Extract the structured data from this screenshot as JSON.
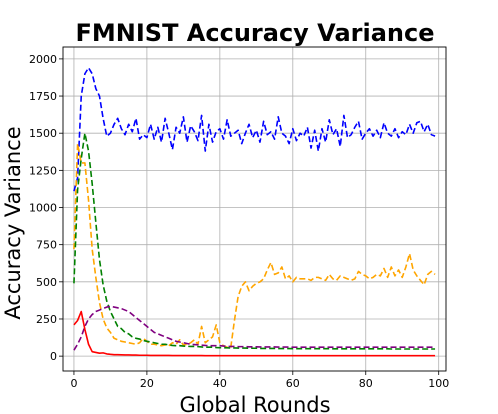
{
  "chart_data": {
    "type": "line",
    "title": "FMNIST Accuracy Variance",
    "xlabel": "Global Rounds",
    "ylabel": "Accuracy Variance",
    "xlim": [
      -3,
      102
    ],
    "ylim": [
      -100,
      2080
    ],
    "xticks": [
      0,
      20,
      40,
      60,
      80,
      100
    ],
    "yticks": [
      0,
      250,
      500,
      750,
      1000,
      1250,
      1500,
      1750,
      2000
    ],
    "grid": true,
    "legend": "none",
    "series": [
      {
        "color": "#0000ff",
        "dash": "dashed",
        "x": [
          0,
          1,
          2,
          3,
          4,
          5,
          6,
          7,
          8,
          9,
          10,
          11,
          12,
          13,
          14,
          15,
          16,
          17,
          18,
          19,
          20,
          21,
          22,
          23,
          24,
          25,
          26,
          27,
          28,
          29,
          30,
          31,
          32,
          33,
          34,
          35,
          36,
          37,
          38,
          39,
          40,
          41,
          42,
          43,
          44,
          45,
          46,
          47,
          48,
          49,
          50,
          51,
          52,
          53,
          54,
          55,
          56,
          57,
          58,
          59,
          60,
          61,
          62,
          63,
          64,
          65,
          66,
          67,
          68,
          69,
          70,
          71,
          72,
          73,
          74,
          75,
          76,
          77,
          78,
          79,
          80,
          81,
          82,
          83,
          84,
          85,
          86,
          87,
          88,
          89,
          90,
          91,
          92,
          93,
          94,
          95,
          96,
          97,
          98,
          99
        ],
        "values": [
          1110,
          1200,
          1750,
          1900,
          1940,
          1900,
          1800,
          1750,
          1600,
          1480,
          1500,
          1560,
          1600,
          1530,
          1490,
          1560,
          1510,
          1600,
          1460,
          1490,
          1470,
          1560,
          1460,
          1540,
          1440,
          1600,
          1500,
          1390,
          1540,
          1500,
          1610,
          1440,
          1550,
          1510,
          1450,
          1620,
          1380,
          1560,
          1440,
          1510,
          1530,
          1460,
          1590,
          1480,
          1500,
          1520,
          1430,
          1500,
          1560,
          1470,
          1520,
          1440,
          1580,
          1490,
          1510,
          1460,
          1610,
          1500,
          1480,
          1430,
          1530,
          1450,
          1500,
          1480,
          1540,
          1400,
          1520,
          1380,
          1530,
          1440,
          1590,
          1490,
          1530,
          1410,
          1620,
          1470,
          1490,
          1540,
          1580,
          1460,
          1500,
          1530,
          1480,
          1520,
          1470,
          1570,
          1500,
          1480,
          1530,
          1470,
          1510,
          1490,
          1560,
          1500,
          1570,
          1580,
          1510,
          1560,
          1490,
          1480
        ]
      },
      {
        "color": "#ffa500",
        "dash": "dashed",
        "x": [
          0,
          1,
          2,
          3,
          4,
          5,
          6,
          7,
          8,
          9,
          10,
          11,
          12,
          13,
          14,
          15,
          16,
          17,
          18,
          19,
          20,
          21,
          22,
          23,
          24,
          25,
          26,
          27,
          28,
          29,
          30,
          31,
          32,
          33,
          34,
          35,
          36,
          37,
          38,
          39,
          40,
          41,
          42,
          43,
          44,
          45,
          46,
          47,
          48,
          49,
          50,
          51,
          52,
          53,
          54,
          55,
          56,
          57,
          58,
          59,
          60,
          61,
          62,
          63,
          64,
          65,
          66,
          67,
          68,
          69,
          70,
          71,
          72,
          73,
          74,
          75,
          76,
          77,
          78,
          79,
          80,
          81,
          82,
          83,
          84,
          85,
          86,
          87,
          88,
          89,
          90,
          91,
          92,
          93,
          94,
          95,
          96,
          97,
          98,
          99
        ],
        "values": [
          720,
          1430,
          1300,
          1300,
          1050,
          720,
          530,
          360,
          250,
          190,
          160,
          120,
          110,
          100,
          95,
          90,
          85,
          80,
          90,
          120,
          100,
          80,
          80,
          75,
          70,
          75,
          70,
          90,
          80,
          110,
          75,
          80,
          90,
          110,
          80,
          200,
          90,
          110,
          130,
          210,
          90,
          70,
          60,
          60,
          240,
          400,
          470,
          500,
          440,
          470,
          490,
          500,
          520,
          580,
          630,
          550,
          560,
          600,
          520,
          540,
          500,
          530,
          520,
          520,
          520,
          510,
          530,
          530,
          520,
          510,
          550,
          520,
          510,
          540,
          530,
          520,
          510,
          520,
          570,
          550,
          540,
          520,
          530,
          550,
          540,
          590,
          530,
          600,
          540,
          580,
          530,
          600,
          690,
          580,
          540,
          510,
          480,
          550,
          570,
          550
        ]
      },
      {
        "color": "#008000",
        "dash": "dashed",
        "x": [
          0,
          1,
          2,
          3,
          4,
          5,
          6,
          7,
          8,
          9,
          10,
          11,
          12,
          13,
          14,
          15,
          16,
          17,
          18,
          19,
          20,
          21,
          22,
          23,
          24,
          25,
          26,
          27,
          28,
          29,
          30,
          31,
          32,
          33,
          34,
          35,
          36,
          37,
          38,
          39,
          40,
          41,
          42,
          43,
          44,
          45,
          46,
          47,
          48,
          49,
          50,
          51,
          52,
          53,
          54,
          55,
          56,
          57,
          58,
          59,
          60,
          61,
          62,
          63,
          64,
          65,
          66,
          67,
          68,
          69,
          70,
          71,
          72,
          73,
          74,
          75,
          76,
          77,
          78,
          79,
          80,
          81,
          82,
          83,
          84,
          85,
          86,
          87,
          88,
          89,
          90,
          91,
          92,
          93,
          94,
          95,
          96,
          97,
          98,
          99
        ],
        "values": [
          490,
          1120,
          1330,
          1500,
          1380,
          1160,
          900,
          650,
          480,
          370,
          300,
          250,
          200,
          185,
          160,
          150,
          130,
          120,
          115,
          105,
          100,
          95,
          90,
          85,
          80,
          80,
          75,
          72,
          70,
          70,
          68,
          66,
          65,
          65,
          64,
          62,
          60,
          60,
          60,
          58,
          57,
          56,
          56,
          55,
          55,
          54,
          54,
          54,
          53,
          53,
          53,
          52,
          52,
          52,
          52,
          52,
          51,
          51,
          51,
          51,
          50,
          50,
          50,
          50,
          50,
          50,
          50,
          50,
          50,
          50,
          50,
          49,
          49,
          49,
          49,
          49,
          49,
          49,
          49,
          49,
          49,
          49,
          49,
          49,
          49,
          49,
          49,
          48,
          48,
          48,
          48,
          48,
          48,
          48,
          48,
          48,
          48,
          48,
          48,
          48
        ]
      },
      {
        "color": "#800080",
        "dash": "dashed",
        "x": [
          0,
          1,
          2,
          3,
          4,
          5,
          6,
          7,
          8,
          9,
          10,
          11,
          12,
          13,
          14,
          15,
          16,
          17,
          18,
          19,
          20,
          21,
          22,
          23,
          24,
          25,
          26,
          27,
          28,
          29,
          30,
          31,
          32,
          33,
          34,
          35,
          36,
          37,
          38,
          39,
          40,
          41,
          42,
          43,
          44,
          45,
          46,
          47,
          48,
          49,
          50,
          51,
          52,
          53,
          54,
          55,
          56,
          57,
          58,
          59,
          60,
          61,
          62,
          63,
          64,
          65,
          66,
          67,
          68,
          69,
          70,
          71,
          72,
          73,
          74,
          75,
          76,
          77,
          78,
          79,
          80,
          81,
          82,
          83,
          84,
          85,
          86,
          87,
          88,
          89,
          90,
          91,
          92,
          93,
          94,
          95,
          96,
          97,
          98,
          99
        ],
        "values": [
          40,
          80,
          130,
          200,
          250,
          280,
          300,
          310,
          320,
          330,
          335,
          330,
          325,
          320,
          310,
          300,
          280,
          260,
          240,
          220,
          200,
          180,
          160,
          150,
          140,
          130,
          120,
          110,
          100,
          95,
          90,
          85,
          80,
          78,
          76,
          74,
          72,
          70,
          70,
          70,
          70,
          68,
          66,
          65,
          65,
          64,
          64,
          64,
          63,
          63,
          63,
          62,
          62,
          62,
          62,
          62,
          61,
          61,
          61,
          61,
          60,
          60,
          60,
          60,
          60,
          60,
          60,
          60,
          60,
          60,
          60,
          60,
          60,
          60,
          60,
          60,
          60,
          60,
          60,
          60,
          60,
          60,
          60,
          60,
          60,
          60,
          60,
          60,
          60,
          60,
          60,
          60,
          60,
          60,
          60,
          60,
          60,
          60,
          60,
          60
        ]
      },
      {
        "color": "#ff0000",
        "dash": "solid",
        "x": [
          0,
          1,
          2,
          3,
          4,
          5,
          6,
          7,
          8,
          9,
          10,
          11,
          12,
          13,
          14,
          15,
          16,
          17,
          18,
          19,
          20,
          21,
          22,
          23,
          24,
          25,
          26,
          27,
          28,
          29,
          30,
          31,
          32,
          33,
          34,
          35,
          36,
          37,
          38,
          39,
          40,
          41,
          42,
          43,
          44,
          45,
          46,
          47,
          48,
          49,
          50,
          51,
          52,
          53,
          54,
          55,
          56,
          57,
          58,
          59,
          60,
          61,
          62,
          63,
          64,
          65,
          66,
          67,
          68,
          69,
          70,
          71,
          72,
          73,
          74,
          75,
          76,
          77,
          78,
          79,
          80,
          81,
          82,
          83,
          84,
          85,
          86,
          87,
          88,
          89,
          90,
          91,
          92,
          93,
          94,
          95,
          96,
          97,
          98,
          99
        ],
        "values": [
          210,
          240,
          300,
          180,
          80,
          30,
          25,
          20,
          22,
          15,
          12,
          10,
          10,
          9,
          8,
          8,
          7,
          7,
          6,
          6,
          6,
          5,
          5,
          5,
          5,
          5,
          5,
          4,
          4,
          4,
          4,
          4,
          4,
          4,
          4,
          4,
          3,
          3,
          3,
          3,
          3,
          3,
          3,
          3,
          3,
          3,
          3,
          3,
          3,
          3,
          3,
          3,
          3,
          3,
          3,
          3,
          3,
          3,
          3,
          3,
          3,
          3,
          3,
          3,
          3,
          3,
          3,
          3,
          3,
          3,
          3,
          3,
          3,
          3,
          3,
          3,
          3,
          3,
          3,
          3,
          3,
          3,
          3,
          3,
          3,
          3,
          3,
          3,
          3,
          3,
          3,
          3,
          3,
          3,
          3,
          3,
          3,
          3,
          3,
          3
        ]
      }
    ]
  }
}
